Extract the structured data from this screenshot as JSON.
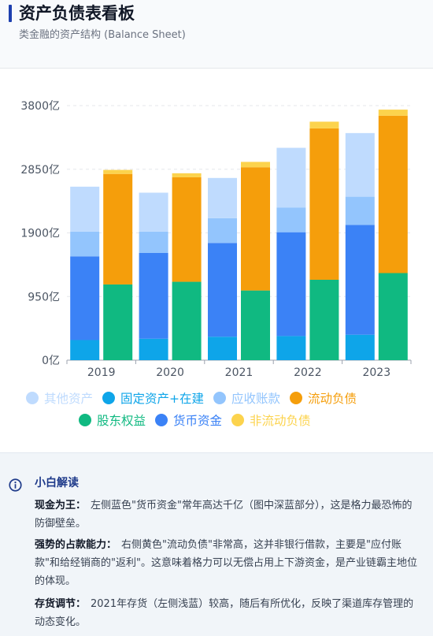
{
  "header": {
    "title": "资产负债表看板",
    "subtitle": "类金融的资产结构 (Balance Sheet)"
  },
  "colors": {
    "other_assets": "#bfdbfe",
    "fixed_assets": "#0ea5e9",
    "receivables": "#93c5fd",
    "current_liab": "#f59e0b",
    "equity": "#10b981",
    "cash": "#3b82f6",
    "noncurrent_liab": "#fcd34d"
  },
  "chart_data": {
    "type": "bar",
    "stacked": true,
    "grouped": true,
    "categories": [
      "2019",
      "2020",
      "2021",
      "2022",
      "2023"
    ],
    "ylim": [
      0,
      3800
    ],
    "yticks": [
      "0亿",
      "950亿",
      "1900亿",
      "2850亿",
      "3800亿"
    ],
    "ytick_values": [
      0,
      950,
      1900,
      2850,
      3800
    ],
    "grid": true,
    "legend_position": "bottom",
    "series": [
      {
        "name": "其他资产",
        "stack": "assets",
        "color": "#bfdbfe",
        "values": [
          670,
          580,
          600,
          890,
          950
        ]
      },
      {
        "name": "固定资产+在建",
        "stack": "assets",
        "color": "#0ea5e9",
        "values": [
          300,
          320,
          350,
          360,
          380
        ]
      },
      {
        "name": "应收账款",
        "stack": "assets",
        "color": "#93c5fd",
        "values": [
          370,
          320,
          370,
          370,
          420
        ]
      },
      {
        "name": "流动负债",
        "stack": "liab",
        "color": "#f59e0b",
        "values": [
          1650,
          1560,
          1840,
          2260,
          2350
        ]
      },
      {
        "name": "股东权益",
        "stack": "liab",
        "color": "#10b981",
        "values": [
          1130,
          1170,
          1040,
          1200,
          1300
        ]
      },
      {
        "name": "货币资金",
        "stack": "assets",
        "color": "#3b82f6",
        "values": [
          1250,
          1280,
          1400,
          1550,
          1640
        ]
      },
      {
        "name": "非流动负债",
        "stack": "liab",
        "color": "#fcd34d",
        "values": [
          60,
          60,
          80,
          100,
          90
        ]
      }
    ]
  },
  "explanation": {
    "title": "小白解读",
    "p1_label": "现金为王：",
    "p1_text": "左侧蓝色\"货币资金\"常年高达千亿（图中深蓝部分），这是格力最恐怖的防御壁垒。",
    "p2_label": "强势的占款能力：",
    "p2_text": "右侧黄色\"流动负债\"非常高，这并非银行借款，主要是\"应付账款\"和给经销商的\"返利\"。这意味着格力可以无偿占用上下游资金，是产业链霸主地位的体现。",
    "p3_label": "存货调节：",
    "p3_text": "2021年存货（左侧浅蓝）较高，随后有所优化，反映了渠道库存管理的动态变化。"
  }
}
